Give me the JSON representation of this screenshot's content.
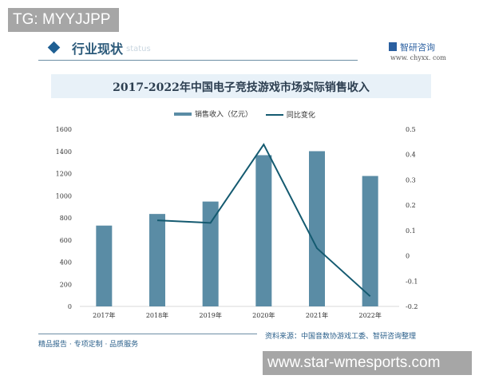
{
  "watermarks": {
    "top": "TG: MYYJJPP",
    "bottom": "www.star-wmesports.com"
  },
  "header": {
    "section_title": "行业现状",
    "section_subtitle": "status",
    "brand_name": "智研咨询",
    "brand_url": "www. chyxx. com"
  },
  "footer": {
    "tagline": "精品报告 · 专项定制 · 品质服务",
    "source": "资料来源：中国音数协游戏工委、智研咨询整理"
  },
  "colors": {
    "bar": "#5a8ca5",
    "line": "#145a70",
    "title_band": "#e8f1f8",
    "accent": "#1f5f93"
  },
  "chart_data": {
    "type": "bar",
    "title": "2017-2022年中国电子竞技游戏市场实际销售收入",
    "categories": [
      "2017年",
      "2018年",
      "2019年",
      "2020年",
      "2021年",
      "2022年"
    ],
    "series": [
      {
        "name": "销售收入（亿元）",
        "type": "bar",
        "axis": "left",
        "values": [
          730,
          835,
          947,
          1366,
          1402,
          1178
        ]
      },
      {
        "name": "同比变化",
        "type": "line",
        "axis": "right",
        "values": [
          null,
          0.14,
          0.13,
          0.44,
          0.03,
          -0.16
        ]
      }
    ],
    "xlabel": "",
    "ylabel": "",
    "ylim": [
      0,
      1600
    ],
    "y_ticks": [
      "0",
      "200",
      "400",
      "600",
      "800",
      "1000",
      "1200",
      "1400",
      "1600"
    ],
    "y2lim": [
      -0.2,
      0.5
    ],
    "y2_ticks": [
      "-0.2",
      "-0.1",
      "0",
      "0.1",
      "0.2",
      "0.3",
      "0.4",
      "0.5"
    ],
    "legend_position": "top",
    "grid": false
  }
}
